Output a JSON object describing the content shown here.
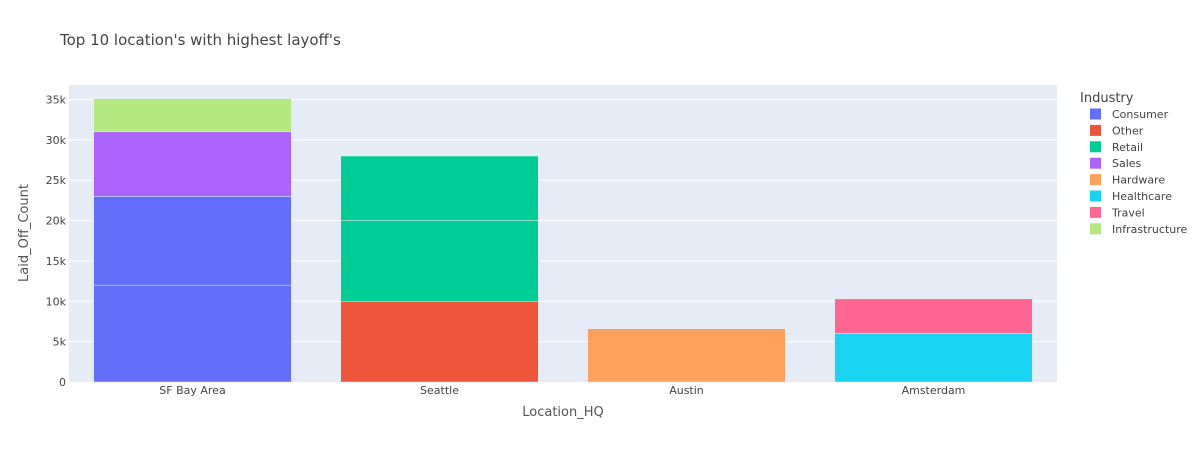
{
  "chart_data": {
    "type": "bar",
    "barmode": "stack",
    "title": "Top 10 location's with highest layoff's",
    "xlabel": "Location_HQ",
    "ylabel": "Laid_Off_Count",
    "categories": [
      "SF Bay Area",
      "Seattle",
      "Austin",
      "Amsterdam"
    ],
    "ylim": [
      0,
      36800
    ],
    "yticks": [
      0,
      5000,
      10000,
      15000,
      20000,
      25000,
      30000,
      35000
    ],
    "ytick_labels": [
      "0",
      "5k",
      "10k",
      "15k",
      "20k",
      "25k",
      "30k",
      "35k"
    ],
    "grid": true,
    "legend_title": "Industry",
    "legend_position": "right",
    "series": [
      {
        "name": "Consumer",
        "color": "#636efa",
        "segments": [
          {
            "category": "SF Bay Area",
            "value": 12000
          },
          {
            "category": "SF Bay Area",
            "value": 11000
          }
        ]
      },
      {
        "name": "Other",
        "color": "#EF553B",
        "segments": [
          {
            "category": "Seattle",
            "value": 10000
          }
        ]
      },
      {
        "name": "Retail",
        "color": "#00cc96",
        "segments": [
          {
            "category": "Seattle",
            "value": 10000
          },
          {
            "category": "Seattle",
            "value": 8000
          }
        ]
      },
      {
        "name": "Sales",
        "color": "#ab63fa",
        "segments": [
          {
            "category": "SF Bay Area",
            "value": 8000
          }
        ]
      },
      {
        "name": "Hardware",
        "color": "#FFA15A",
        "segments": [
          {
            "category": "Austin",
            "value": 6600
          }
        ]
      },
      {
        "name": "Healthcare",
        "color": "#19d3f3",
        "segments": [
          {
            "category": "Amsterdam",
            "value": 6000
          }
        ]
      },
      {
        "name": "Travel",
        "color": "#FF6692",
        "segments": [
          {
            "category": "Amsterdam",
            "value": 4300
          }
        ]
      },
      {
        "name": "Infrastructure",
        "color": "#B6E880",
        "segments": [
          {
            "category": "SF Bay Area",
            "value": 4100
          }
        ]
      }
    ]
  }
}
